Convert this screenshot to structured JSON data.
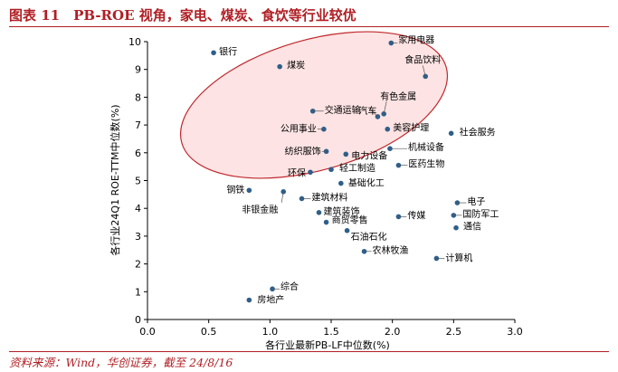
{
  "header": {
    "title": "图表 11　PB-ROE 视角，家电、煤炭、食饮等行业较优"
  },
  "footer": {
    "source": "资料来源：Wind，华创证券，截至 24/8/16"
  },
  "colors": {
    "accent": "#b01f24",
    "point": "#2e5f8a",
    "ellipse": "#c0282d",
    "ellipse_fill": "#fde3e3"
  },
  "chart_data": {
    "type": "scatter",
    "xlabel": "各行业最新PB-LF中位数(%)",
    "ylabel": "各行业24Q1 ROE-TTM中位数(%)",
    "xlim": [
      0.0,
      3.0
    ],
    "ylim": [
      0,
      10
    ],
    "x_ticks": [
      "0.0",
      "0.5",
      "1.0",
      "1.5",
      "2.0",
      "2.5",
      "3.0"
    ],
    "y_ticks": [
      "0",
      "1",
      "2",
      "3",
      "4",
      "5",
      "6",
      "7",
      "8",
      "9",
      "10"
    ],
    "grid": false,
    "highlight": "ellipse around high ROE sectors",
    "points": [
      {
        "label": "银行",
        "x": 0.54,
        "y": 9.6
      },
      {
        "label": "煤炭",
        "x": 1.08,
        "y": 9.1
      },
      {
        "label": "家用电器",
        "x": 1.99,
        "y": 9.95
      },
      {
        "label": "食品饮料",
        "x": 2.27,
        "y": 8.75
      },
      {
        "label": "有色金属",
        "x": 1.93,
        "y": 7.4
      },
      {
        "label": "交通运输",
        "x": 1.35,
        "y": 7.5
      },
      {
        "label": "汽车",
        "x": 1.88,
        "y": 7.3
      },
      {
        "label": "公用事业",
        "x": 1.44,
        "y": 6.85
      },
      {
        "label": "美容护理",
        "x": 1.96,
        "y": 6.85
      },
      {
        "label": "社会服务",
        "x": 2.48,
        "y": 6.7
      },
      {
        "label": "纺织服饰",
        "x": 1.46,
        "y": 6.05
      },
      {
        "label": "机械设备",
        "x": 1.98,
        "y": 6.15
      },
      {
        "label": "电力设备",
        "x": 1.62,
        "y": 5.95
      },
      {
        "label": "医药生物",
        "x": 2.05,
        "y": 5.55
      },
      {
        "label": "轻工制造",
        "x": 1.5,
        "y": 5.4
      },
      {
        "label": "环保",
        "x": 1.33,
        "y": 5.3
      },
      {
        "label": "基础化工",
        "x": 1.58,
        "y": 4.9
      },
      {
        "label": "钢铁",
        "x": 0.83,
        "y": 4.65
      },
      {
        "label": "非银金融",
        "x": 1.11,
        "y": 4.6
      },
      {
        "label": "建筑材料",
        "x": 1.26,
        "y": 4.35
      },
      {
        "label": "电子",
        "x": 2.53,
        "y": 4.2
      },
      {
        "label": "建筑装饰",
        "x": 1.4,
        "y": 3.85
      },
      {
        "label": "国防军工",
        "x": 2.5,
        "y": 3.75
      },
      {
        "label": "传媒",
        "x": 2.05,
        "y": 3.7
      },
      {
        "label": "商贸零售",
        "x": 1.46,
        "y": 3.5
      },
      {
        "label": "通信",
        "x": 2.52,
        "y": 3.3
      },
      {
        "label": "石油石化",
        "x": 1.63,
        "y": 3.2
      },
      {
        "label": "农林牧渔",
        "x": 1.77,
        "y": 2.45
      },
      {
        "label": "计算机",
        "x": 2.36,
        "y": 2.2
      },
      {
        "label": "综合",
        "x": 1.02,
        "y": 1.1
      },
      {
        "label": "房地产",
        "x": 0.83,
        "y": 0.7
      }
    ]
  }
}
